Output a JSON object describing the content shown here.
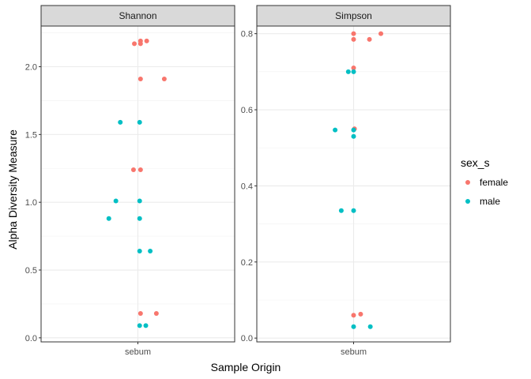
{
  "chart_data": {
    "type": "scatter",
    "xlabel": "Sample Origin",
    "ylabel": "Alpha Diversity Measure",
    "categories": [
      "sebum"
    ],
    "grid": true,
    "legend": {
      "title": "sex_s",
      "placement": "right",
      "entries": [
        {
          "name": "female",
          "color": "#F8766D"
        },
        {
          "name": "male",
          "color": "#00BFC4"
        }
      ]
    },
    "panels": [
      {
        "title": "Shannon",
        "ylim": [
          -0.03,
          2.3
        ],
        "yticks": [
          0.0,
          0.5,
          1.0,
          1.5,
          2.0
        ],
        "ytick_labels": [
          "0.0",
          "0.5",
          "1.0",
          "1.5",
          "2.0"
        ],
        "series": [
          {
            "name": "female",
            "points": [
              {
                "x": 0.03,
                "y": 2.19
              },
              {
                "x": 0.1,
                "y": 2.19
              },
              {
                "x": 0.03,
                "y": 2.17
              },
              {
                "x": -0.04,
                "y": 2.17
              },
              {
                "x": 0.03,
                "y": 1.91
              },
              {
                "x": 0.3,
                "y": 1.91
              },
              {
                "x": -0.05,
                "y": 1.24
              },
              {
                "x": 0.03,
                "y": 1.24
              },
              {
                "x": 0.03,
                "y": 0.18
              },
              {
                "x": 0.21,
                "y": 0.18
              }
            ]
          },
          {
            "name": "male",
            "points": [
              {
                "x": -0.2,
                "y": 1.59
              },
              {
                "x": 0.02,
                "y": 1.59
              },
              {
                "x": -0.25,
                "y": 1.01
              },
              {
                "x": 0.02,
                "y": 1.01
              },
              {
                "x": -0.33,
                "y": 0.88
              },
              {
                "x": 0.02,
                "y": 0.88
              },
              {
                "x": 0.02,
                "y": 0.64
              },
              {
                "x": 0.14,
                "y": 0.64
              },
              {
                "x": 0.02,
                "y": 0.09
              },
              {
                "x": 0.09,
                "y": 0.09
              }
            ]
          }
        ]
      },
      {
        "title": "Simpson",
        "ylim": [
          -0.01,
          0.82
        ],
        "yticks": [
          0.0,
          0.2,
          0.4,
          0.6,
          0.8
        ],
        "ytick_labels": [
          "0.0",
          "0.2",
          "0.4",
          "0.6",
          "0.8"
        ],
        "series": [
          {
            "name": "female",
            "points": [
              {
                "x": 0.0,
                "y": 0.8
              },
              {
                "x": 0.31,
                "y": 0.8
              },
              {
                "x": 0.0,
                "y": 0.785
              },
              {
                "x": 0.18,
                "y": 0.785
              },
              {
                "x": 0.0,
                "y": 0.71
              },
              {
                "x": 0.01,
                "y": 0.55
              },
              {
                "x": 0.0,
                "y": 0.06
              },
              {
                "x": 0.08,
                "y": 0.063
              }
            ]
          },
          {
            "name": "male",
            "points": [
              {
                "x": -0.06,
                "y": 0.7
              },
              {
                "x": 0.0,
                "y": 0.7
              },
              {
                "x": -0.21,
                "y": 0.547
              },
              {
                "x": 0.0,
                "y": 0.547
              },
              {
                "x": 0.0,
                "y": 0.53
              },
              {
                "x": -0.14,
                "y": 0.335
              },
              {
                "x": 0.0,
                "y": 0.335
              },
              {
                "x": 0.0,
                "y": 0.03
              },
              {
                "x": 0.19,
                "y": 0.03
              }
            ]
          }
        ]
      }
    ]
  }
}
